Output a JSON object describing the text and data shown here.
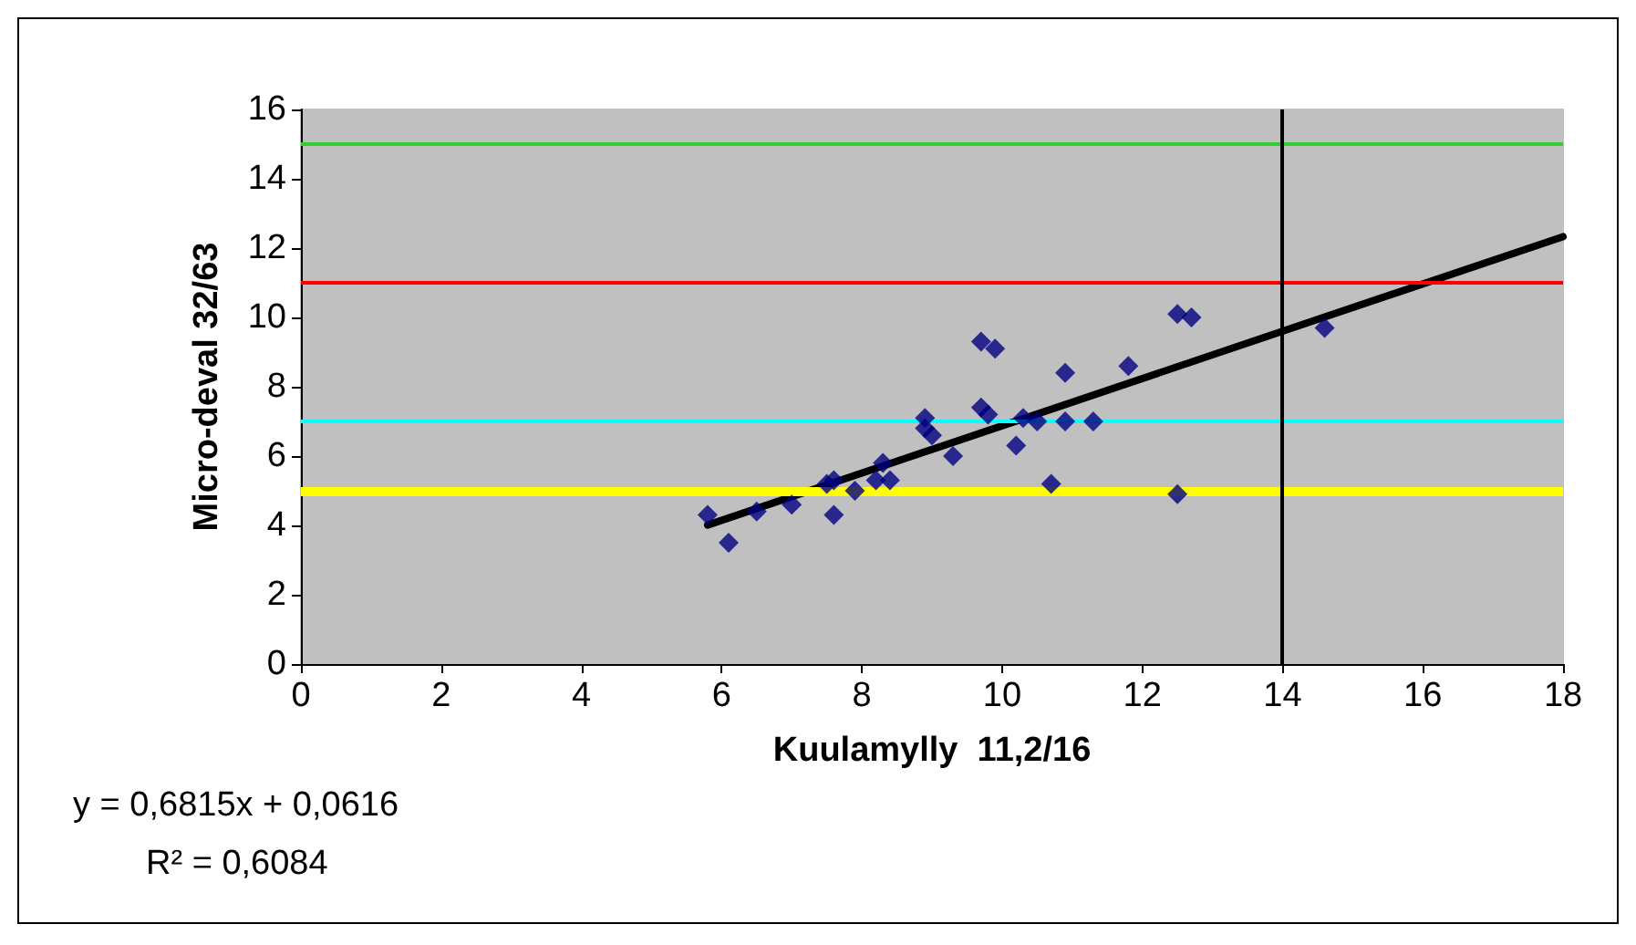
{
  "chart_data": {
    "type": "scatter",
    "xlabel": "Kuulamylly  11,2/16",
    "ylabel": "Micro-deval 32/63",
    "xlim": [
      0,
      18
    ],
    "xticks": [
      0,
      2,
      4,
      6,
      8,
      10,
      12,
      14,
      16,
      18
    ],
    "ylim": [
      0,
      16
    ],
    "yticks": [
      0,
      2,
      4,
      6,
      8,
      10,
      12,
      14,
      16
    ],
    "grid": false,
    "marker": "diamond",
    "series": [
      {
        "color": "#000080",
        "x": [
          5.8,
          6.1,
          6.5,
          7.0,
          7.5,
          7.6,
          7.6,
          7.9,
          8.2,
          8.3,
          8.4,
          8.9,
          8.9,
          9.0,
          9.3,
          9.7,
          9.9,
          9.7,
          9.8,
          10.2,
          10.3,
          10.5,
          10.7,
          10.9,
          10.9,
          11.3,
          11.8,
          12.5,
          12.7,
          12.5,
          14.6
        ],
        "values": [
          4.3,
          3.5,
          4.4,
          4.6,
          5.2,
          5.3,
          4.3,
          5.0,
          5.3,
          5.8,
          5.3,
          7.1,
          6.8,
          6.6,
          6.0,
          9.3,
          9.1,
          7.4,
          7.2,
          6.3,
          7.1,
          7.0,
          5.2,
          8.4,
          7.0,
          7.0,
          8.6,
          10.1,
          10.0,
          4.9,
          9.7
        ]
      },
      {
        "type": "line",
        "color": "#000000",
        "marker": "none",
        "x": [
          5.8,
          18
        ],
        "values": [
          4.01,
          12.33
        ]
      }
    ],
    "ref_lines": [
      {
        "axis": "y",
        "value": 15,
        "color": "#33cc33"
      },
      {
        "axis": "y",
        "value": 11,
        "color": "#ff0000"
      },
      {
        "axis": "y",
        "value": 7,
        "color": "#00ffff"
      },
      {
        "axis": "y",
        "value": 5,
        "color": "#ffff00"
      },
      {
        "axis": "x",
        "value": 14,
        "color": "#000000"
      }
    ],
    "annotations": [
      "y = 0,6815x + 0,0616",
      "R² = 0,6084"
    ]
  }
}
